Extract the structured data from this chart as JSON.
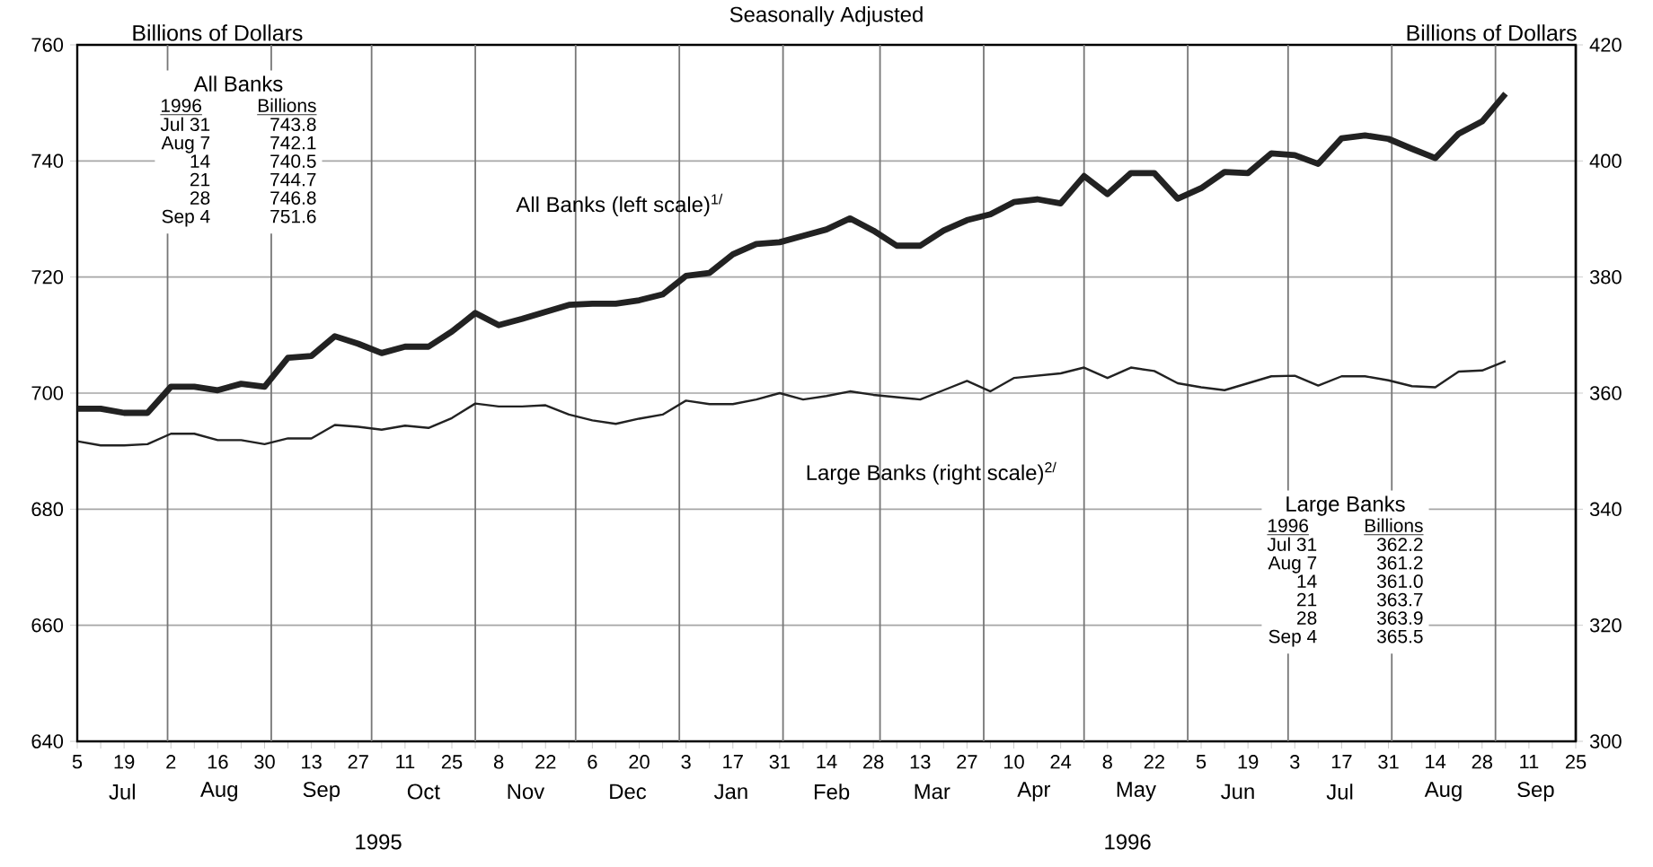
{
  "chart_data": {
    "type": "line",
    "title": "Seasonally Adjusted",
    "ylabel": "Billions of Dollars",
    "y2label": "Billions of Dollars",
    "x": [
      "1995-07-05",
      "1995-07-12",
      "1995-07-19",
      "1995-07-26",
      "1995-08-02",
      "1995-08-09",
      "1995-08-16",
      "1995-08-23",
      "1995-08-30",
      "1995-09-06",
      "1995-09-13",
      "1995-09-20",
      "1995-09-27",
      "1995-10-04",
      "1995-10-11",
      "1995-10-18",
      "1995-10-25",
      "1995-11-01",
      "1995-11-08",
      "1995-11-15",
      "1995-11-22",
      "1995-11-29",
      "1995-12-06",
      "1995-12-13",
      "1995-12-20",
      "1995-12-27",
      "1996-01-03",
      "1996-01-10",
      "1996-01-17",
      "1996-01-24",
      "1996-01-31",
      "1996-02-07",
      "1996-02-14",
      "1996-02-21",
      "1996-02-28",
      "1996-03-06",
      "1996-03-13",
      "1996-03-20",
      "1996-03-27",
      "1996-04-03",
      "1996-04-10",
      "1996-04-17",
      "1996-04-24",
      "1996-05-01",
      "1996-05-08",
      "1996-05-15",
      "1996-05-22",
      "1996-05-29",
      "1996-06-05",
      "1996-06-12",
      "1996-06-19",
      "1996-06-26",
      "1996-07-03",
      "1996-07-10",
      "1996-07-17",
      "1996-07-24",
      "1996-07-31",
      "1996-08-07",
      "1996-08-14",
      "1996-08-21",
      "1996-08-28",
      "1996-09-04"
    ],
    "series": [
      {
        "name": "All Banks (left scale)$^{1/}$",
        "color": "#222222",
        "axis": "y",
        "values": [
          697.3,
          697.3,
          696.6,
          696.6,
          701.1,
          701.1,
          700.5,
          701.6,
          701.1,
          706.1,
          706.4,
          709.8,
          708.5,
          706.9,
          708,
          708,
          710.6,
          713.8,
          711.7,
          712.8,
          714,
          715.2,
          715.4,
          715.4,
          716,
          717,
          720.2,
          720.7,
          723.9,
          725.7,
          726,
          727.1,
          728.2,
          730.1,
          728,
          725.4,
          725.4,
          728,
          729.8,
          730.8,
          732.9,
          733.4,
          732.7,
          737.4,
          734.3,
          737.9,
          737.9,
          733.5,
          735.3,
          738.1,
          737.9,
          741.3,
          741,
          739.5,
          743.9,
          744.4,
          743.8,
          742.1,
          740.5,
          744.7,
          746.8,
          751.6
        ]
      },
      {
        "name": "Large Banks (right scale)$^{2/}$",
        "color": "#222222",
        "axis": "y2",
        "values": [
          351.7,
          351,
          351,
          351.2,
          353,
          353,
          351.9,
          351.9,
          351.2,
          352.2,
          352.2,
          354.5,
          354.2,
          353.7,
          354.4,
          354,
          355.7,
          358.2,
          357.7,
          357.7,
          357.9,
          356.3,
          355.3,
          354.7,
          355.6,
          356.3,
          358.7,
          358.1,
          358.1,
          358.9,
          360,
          358.9,
          359.5,
          360.3,
          359.7,
          359.3,
          358.9,
          360.5,
          362.1,
          360.3,
          362.6,
          363,
          363.4,
          364.4,
          362.6,
          364.4,
          363.8,
          361.7,
          361,
          360.5,
          361.7,
          362.9,
          363,
          361.3,
          362.9,
          362.9,
          362.2,
          361.2,
          361,
          363.7,
          363.9,
          365.5
        ]
      }
    ],
    "xlim": [
      "1995-07-05",
      "1996-09-25"
    ],
    "xticks": [
      {
        "value": "1995-07-05",
        "label": "5"
      },
      {
        "value": "1995-07-12",
        "label": null
      },
      {
        "value": "1995-07-19",
        "label": "19"
      },
      {
        "value": "1995-07-26",
        "label": null
      },
      {
        "value": "1995-08-02",
        "label": "2"
      },
      {
        "value": "1995-08-09",
        "label": null
      },
      {
        "value": "1995-08-16",
        "label": "16"
      },
      {
        "value": "1995-08-23",
        "label": null
      },
      {
        "value": "1995-08-30",
        "label": "30"
      },
      {
        "value": "1995-09-06",
        "label": null
      },
      {
        "value": "1995-09-13",
        "label": "13"
      },
      {
        "value": "1995-09-20",
        "label": null
      },
      {
        "value": "1995-09-27",
        "label": "27"
      },
      {
        "value": "1995-10-04",
        "label": null
      },
      {
        "value": "1995-10-11",
        "label": "11"
      },
      {
        "value": "1995-10-18",
        "label": null
      },
      {
        "value": "1995-10-25",
        "label": "25"
      },
      {
        "value": "1995-11-01",
        "label": null
      },
      {
        "value": "1995-11-08",
        "label": "8"
      },
      {
        "value": "1995-11-15",
        "label": null
      },
      {
        "value": "1995-11-22",
        "label": "22"
      },
      {
        "value": "1995-11-29",
        "label": null
      },
      {
        "value": "1995-12-06",
        "label": "6"
      },
      {
        "value": "1995-12-13",
        "label": null
      },
      {
        "value": "1995-12-20",
        "label": "20"
      },
      {
        "value": "1995-12-27",
        "label": null
      },
      {
        "value": "1996-01-03",
        "label": "3"
      },
      {
        "value": "1996-01-10",
        "label": null
      },
      {
        "value": "1996-01-17",
        "label": "17"
      },
      {
        "value": "1996-01-24",
        "label": null
      },
      {
        "value": "1996-01-31",
        "label": "31"
      },
      {
        "value": "1996-02-07",
        "label": null
      },
      {
        "value": "1996-02-14",
        "label": "14"
      },
      {
        "value": "1996-02-21",
        "label": null
      },
      {
        "value": "1996-02-28",
        "label": "28"
      },
      {
        "value": "1996-03-06",
        "label": null
      },
      {
        "value": "1996-03-13",
        "label": "13"
      },
      {
        "value": "1996-03-20",
        "label": null
      },
      {
        "value": "1996-03-27",
        "label": "27"
      },
      {
        "value": "1996-04-03",
        "label": null
      },
      {
        "value": "1996-04-10",
        "label": "10"
      },
      {
        "value": "1996-04-17",
        "label": null
      },
      {
        "value": "1996-04-24",
        "label": "24"
      },
      {
        "value": "1996-05-01",
        "label": null
      },
      {
        "value": "1996-05-08",
        "label": "8"
      },
      {
        "value": "1996-05-15",
        "label": null
      },
      {
        "value": "1996-05-22",
        "label": "22"
      },
      {
        "value": "1996-05-29",
        "label": null
      },
      {
        "value": "1996-06-05",
        "label": "5"
      },
      {
        "value": "1996-06-12",
        "label": null
      },
      {
        "value": "1996-06-19",
        "label": "19"
      },
      {
        "value": "1996-06-26",
        "label": null
      },
      {
        "value": "1996-07-03",
        "label": "3"
      },
      {
        "value": "1996-07-10",
        "label": null
      },
      {
        "value": "1996-07-17",
        "label": "17"
      },
      {
        "value": "1996-07-24",
        "label": null
      },
      {
        "value": "1996-07-31",
        "label": "31"
      },
      {
        "value": "1996-08-07",
        "label": null
      },
      {
        "value": "1996-08-14",
        "label": "14"
      },
      {
        "value": "1996-08-21",
        "label": null
      },
      {
        "value": "1996-08-28",
        "label": "28"
      },
      {
        "value": "1996-09-04",
        "label": null
      },
      {
        "value": "1996-09-11",
        "label": "11"
      },
      {
        "value": "1996-09-18",
        "label": null
      },
      {
        "value": "1996-09-25",
        "label": "25"
      }
    ],
    "ylim": [
      640,
      760
    ],
    "yticks": [
      640,
      660,
      680,
      700,
      720,
      740,
      760
    ],
    "y2lim": [
      300,
      420
    ],
    "y2ticks": [
      300,
      320,
      340,
      360,
      380,
      400,
      420
    ],
    "grid": "y",
    "ref_lines": [
      {
        "axis": "x",
        "value": "1995-08-01",
        "color": "#777777"
      },
      {
        "axis": "x",
        "value": "1995-09-01",
        "color": "#777777"
      },
      {
        "axis": "x",
        "value": "1995-10-01",
        "color": "#777777"
      },
      {
        "axis": "x",
        "value": "1995-11-01",
        "color": "#777777"
      },
      {
        "axis": "x",
        "value": "1995-12-01",
        "color": "#777777"
      },
      {
        "axis": "x",
        "value": "1996-01-01",
        "color": "#777777"
      },
      {
        "axis": "x",
        "value": "1996-02-01",
        "color": "#777777"
      },
      {
        "axis": "x",
        "value": "1996-03-01",
        "color": "#777777"
      },
      {
        "axis": "x",
        "value": "1996-04-01",
        "color": "#777777"
      },
      {
        "axis": "x",
        "value": "1996-05-01",
        "color": "#777777"
      },
      {
        "axis": "x",
        "value": "1996-06-01",
        "color": "#777777"
      },
      {
        "axis": "x",
        "value": "1996-07-01",
        "color": "#777777"
      },
      {
        "axis": "x",
        "value": "1996-08-01",
        "color": "#777777"
      },
      {
        "axis": "x",
        "value": "1996-09-01",
        "color": "#777777"
      }
    ],
    "annotations": [
      "All Banks",
      "1996",
      "Billions",
      "Jul 31",
      "743.8",
      "Aug 7",
      "742.1",
      "14",
      "740.5",
      "21",
      "744.7",
      "28",
      "746.8",
      "Sep 4",
      "751.6",
      "Large Banks",
      "1996",
      "Billions",
      "Jul 31",
      "362.2",
      "Aug 7",
      "361.2",
      "14",
      "361.0",
      "21",
      "363.7",
      "28",
      "363.9",
      "Sep 4",
      "365.5",
      "Jul",
      "Aug",
      "Sep",
      "Oct",
      "Nov",
      "Dec",
      "Jan",
      "Feb",
      "Mar",
      "Apr",
      "May",
      "Jun",
      "Jul",
      "Aug",
      "Sep",
      "1995",
      "1996"
    ]
  }
}
